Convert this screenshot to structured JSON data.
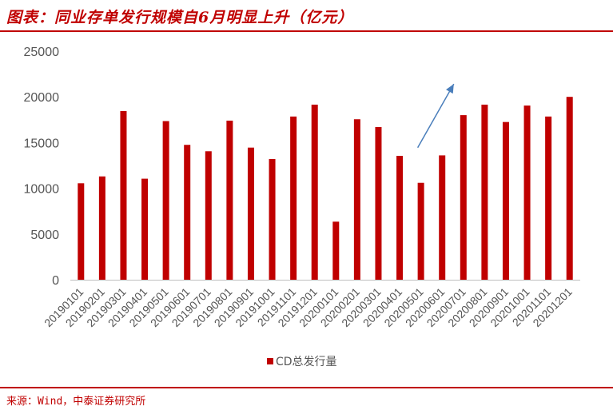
{
  "header": {
    "title": "图表：同业存单发行规模自6月明显上升（亿元）"
  },
  "footer": {
    "source": "来源：Wind，中泰证券研究所"
  },
  "colors": {
    "bar": "#c00000",
    "accent_rule": "#c00000",
    "arrow": "#4a7ebb",
    "axis_text": "#555555"
  },
  "chart_data": {
    "type": "bar",
    "title": "图表：同业存单发行规模自6月明显上升（亿元）",
    "xlabel": "",
    "ylabel": "",
    "ylim": [
      0,
      25000
    ],
    "yticks": [
      0,
      5000,
      10000,
      15000,
      20000,
      25000
    ],
    "grid": false,
    "legend_position": "bottom",
    "categories": [
      "20190101",
      "20190201",
      "20190301",
      "20190401",
      "20190501",
      "20190601",
      "20190701",
      "20190801",
      "20190901",
      "20191001",
      "20191101",
      "20191201",
      "20200101",
      "20200201",
      "20200301",
      "20200401",
      "20200501",
      "20200601",
      "20200701",
      "20200801",
      "20200901",
      "20201001",
      "20201101",
      "20201201"
    ],
    "series": [
      {
        "name": "CD总发行量",
        "values": [
          10550,
          11300,
          18450,
          11050,
          17350,
          14750,
          14050,
          17400,
          14450,
          13200,
          17850,
          19150,
          6350,
          17550,
          16700,
          13550,
          10600,
          13600,
          18000,
          19150,
          17250,
          19050,
          17850,
          20000
        ]
      }
    ],
    "annotations": [
      {
        "type": "arrow",
        "from_category": "20200501",
        "to_category": "20200701",
        "meaning": "upward trend from June"
      }
    ]
  }
}
